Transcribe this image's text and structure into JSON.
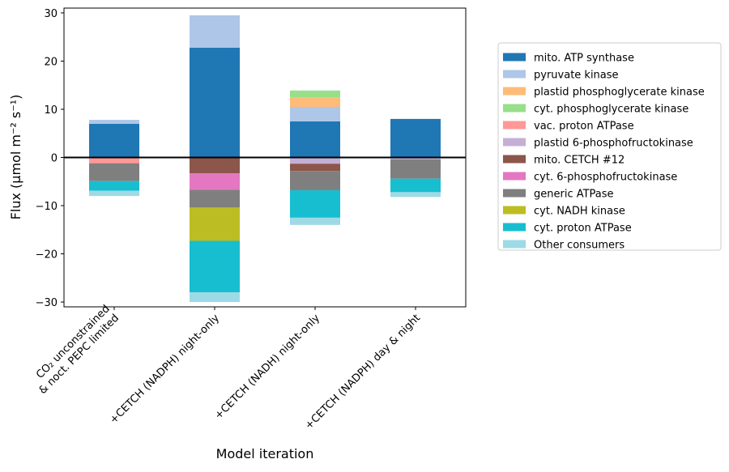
{
  "chart_data": {
    "type": "bar",
    "stacked": true,
    "xlabel": "Model iteration",
    "ylabel": "Flux (μmol m⁻² s⁻¹)",
    "ylim": [
      -31,
      31
    ],
    "yticks": [
      -30,
      -20,
      -10,
      0,
      10,
      20,
      30
    ],
    "ytick_labels": [
      "−30",
      "−20",
      "−10",
      "0",
      "10",
      "20",
      "30"
    ],
    "categories": [
      "CO₂ unconstrained & noct. PEPC limited",
      "+CETCH (NADPH) night-only",
      "+CETCH (NADH) night-only",
      "+CETCH (NADPH) day & night"
    ],
    "category_lines": [
      [
        "CO₂ unconstrained",
        "& noct. PEPC limited"
      ],
      [
        "+CETCH (NADPH) night-only"
      ],
      [
        "+CETCH (NADH) night-only"
      ],
      [
        "+CETCH (NADPH) day & night"
      ]
    ],
    "zero_line": true,
    "grid": false,
    "legend_position": "right",
    "series": [
      {
        "name": "mito. ATP synthase",
        "color": "#1f77b4",
        "values": [
          7.0,
          22.8,
          7.5,
          8.0
        ]
      },
      {
        "name": "pyruvate kinase",
        "color": "#aec7e8",
        "values": [
          0.8,
          6.7,
          3.0,
          0
        ]
      },
      {
        "name": "plastid phosphoglycerate kinase",
        "color": "#ffbb78",
        "values": [
          0,
          0,
          2.0,
          0
        ]
      },
      {
        "name": "cyt. phosphoglycerate kinase",
        "color": "#98df8a",
        "values": [
          0,
          0,
          1.4,
          0
        ]
      },
      {
        "name": "vac. proton ATPase",
        "color": "#ff9896",
        "values": [
          -1.2,
          0,
          0,
          0
        ]
      },
      {
        "name": "plastid 6-phosphofructokinase",
        "color": "#c5b0d5",
        "values": [
          0,
          0,
          -1.3,
          -0.4
        ]
      },
      {
        "name": "mito. CETCH #12",
        "color": "#8c564b",
        "values": [
          0,
          -3.3,
          -1.5,
          0
        ]
      },
      {
        "name": "cyt. 6-phosphofructokinase",
        "color": "#e377c2",
        "values": [
          0,
          -3.4,
          0,
          0
        ]
      },
      {
        "name": "generic ATPase",
        "color": "#7f7f7f",
        "values": [
          -3.7,
          -3.7,
          -4.0,
          -4.0
        ]
      },
      {
        "name": "cyt. NADH kinase",
        "color": "#bcbd22",
        "values": [
          0,
          -6.9,
          0,
          0
        ]
      },
      {
        "name": "cyt. proton ATPase",
        "color": "#17becf",
        "values": [
          -2.0,
          -10.7,
          -5.7,
          -2.8
        ]
      },
      {
        "name": "Other consumers",
        "color": "#9edae5",
        "values": [
          -1.1,
          -2.0,
          -1.5,
          -1.0
        ]
      }
    ]
  }
}
